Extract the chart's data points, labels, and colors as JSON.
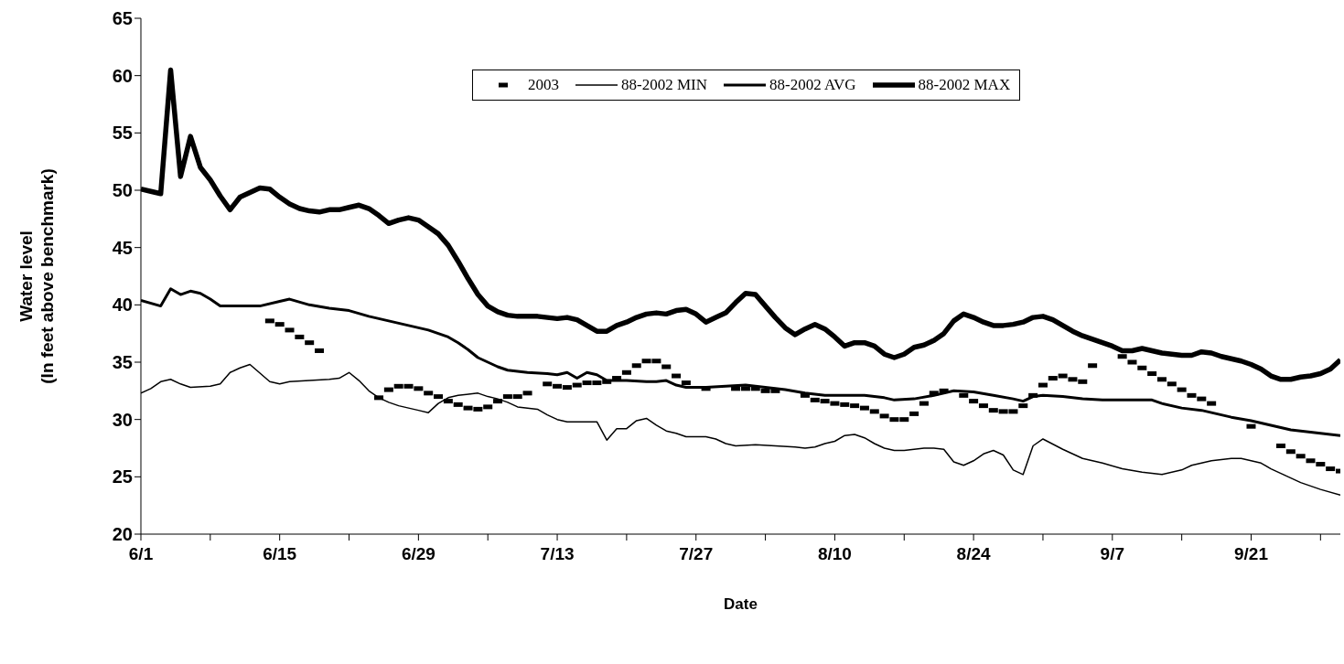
{
  "chart_data": {
    "type": "line",
    "xlabel": "Date",
    "ylabel": "Water level\n(In feet above benchmark)",
    "x": [
      "--06-01",
      "--06-02",
      "--06-03",
      "--06-04",
      "--06-05",
      "--06-06",
      "--06-07",
      "--06-08",
      "--06-09",
      "--06-10",
      "--06-11",
      "--06-12",
      "--06-13",
      "--06-14",
      "--06-15",
      "--06-16",
      "--06-17",
      "--06-18",
      "--06-19",
      "--06-20",
      "--06-21",
      "--06-22",
      "--06-23",
      "--06-24",
      "--06-25",
      "--06-26",
      "--06-27",
      "--06-28",
      "--06-29",
      "--06-30",
      "--07-01",
      "--07-02",
      "--07-03",
      "--07-04",
      "--07-05",
      "--07-06",
      "--07-07",
      "--07-08",
      "--07-09",
      "--07-10",
      "--07-11",
      "--07-12",
      "--07-13",
      "--07-14",
      "--07-15",
      "--07-16",
      "--07-17",
      "--07-18",
      "--07-19",
      "--07-20",
      "--07-21",
      "--07-22",
      "--07-23",
      "--07-24",
      "--07-25",
      "--07-26",
      "--07-27",
      "--07-28",
      "--07-29",
      "--07-30",
      "--07-31",
      "--08-01",
      "--08-02",
      "--08-03",
      "--08-04",
      "--08-05",
      "--08-06",
      "--08-07",
      "--08-08",
      "--08-09",
      "--08-10",
      "--08-11",
      "--08-12",
      "--08-13",
      "--08-14",
      "--08-15",
      "--08-16",
      "--08-17",
      "--08-18",
      "--08-19",
      "--08-20",
      "--08-21",
      "--08-22",
      "--08-23",
      "--08-24",
      "--08-25",
      "--08-26",
      "--08-27",
      "--08-28",
      "--08-29",
      "--08-30",
      "--08-31",
      "--09-01",
      "--09-02",
      "--09-03",
      "--09-04",
      "--09-05",
      "--09-06",
      "--09-07",
      "--09-08",
      "--09-09",
      "--09-10",
      "--09-11",
      "--09-12",
      "--09-13",
      "--09-14",
      "--09-15",
      "--09-16",
      "--09-17",
      "--09-18",
      "--09-19",
      "--09-20",
      "--09-21",
      "--09-22",
      "--09-23",
      "--09-24",
      "--09-25",
      "--09-26",
      "--09-27",
      "--09-28",
      "--09-29",
      "--09-30"
    ],
    "series": [
      {
        "name": "2003",
        "type": "scatter",
        "marker": "square",
        "color": "#000000",
        "values": [
          null,
          null,
          null,
          null,
          null,
          null,
          null,
          null,
          null,
          null,
          null,
          null,
          null,
          38.6,
          38.3,
          37.8,
          37.2,
          36.7,
          36.0,
          null,
          null,
          null,
          null,
          null,
          31.9,
          32.6,
          32.9,
          32.9,
          32.7,
          32.3,
          32.0,
          31.6,
          31.3,
          31.0,
          30.9,
          31.1,
          31.6,
          32.0,
          32.0,
          32.3,
          null,
          33.1,
          32.9,
          32.8,
          33.0,
          33.2,
          33.2,
          33.3,
          33.6,
          34.1,
          34.7,
          35.1,
          35.1,
          34.6,
          33.8,
          33.2,
          null,
          32.7,
          null,
          null,
          32.7,
          32.7,
          32.7,
          32.5,
          32.5,
          null,
          null,
          32.1,
          31.7,
          31.6,
          31.4,
          31.3,
          31.2,
          31.0,
          30.7,
          30.3,
          30.0,
          30.0,
          30.5,
          31.4,
          32.3,
          32.5,
          null,
          32.1,
          31.6,
          31.2,
          30.8,
          30.7,
          30.7,
          31.2,
          32.1,
          33.0,
          33.6,
          33.8,
          33.5,
          33.3,
          34.7,
          null,
          null,
          35.5,
          35.0,
          34.5,
          34.0,
          33.5,
          33.1,
          32.6,
          32.1,
          31.8,
          31.4,
          null,
          null,
          null,
          29.4,
          null,
          null,
          27.7,
          27.2,
          26.8,
          26.4,
          26.1,
          25.7,
          25.5
        ]
      },
      {
        "name": "88-2002 MIN",
        "color": "#000000",
        "x": [
          "--06-01",
          "--06-02",
          "--06-03",
          "--06-04",
          "--06-05",
          "--06-06",
          "--06-08",
          "--06-09",
          "--06-10",
          "--06-11",
          "--06-12",
          "--06-14",
          "--06-15",
          "--06-16",
          "--06-18",
          "--06-20",
          "--06-21",
          "--06-22",
          "--06-23",
          "--06-24",
          "--06-25",
          "--06-26",
          "--06-27",
          "--06-29",
          "--06-30",
          "--07-01",
          "--07-02",
          "--07-03",
          "--07-05",
          "--07-06",
          "--07-07",
          "--07-08",
          "--07-09",
          "--07-11",
          "--07-12",
          "--07-13",
          "--07-14",
          "--07-17",
          "--07-18",
          "--07-19",
          "--07-20",
          "--07-21",
          "--07-22",
          "--07-23",
          "--07-24",
          "--07-25",
          "--07-26",
          "--07-28",
          "--07-29",
          "--07-30",
          "--07-31",
          "--08-02",
          "--08-04",
          "--08-06",
          "--08-07",
          "--08-08",
          "--08-09",
          "--08-10",
          "--08-11",
          "--08-12",
          "--08-13",
          "--08-14",
          "--08-15",
          "--08-16",
          "--08-17",
          "--08-19",
          "--08-20",
          "--08-21",
          "--08-22",
          "--08-23",
          "--08-24",
          "--08-25",
          "--08-26",
          "--08-27",
          "--08-28",
          "--08-29",
          "--08-30",
          "--08-31",
          "--09-02",
          "--09-04",
          "--09-06",
          "--09-08",
          "--09-10",
          "--09-12",
          "--09-14",
          "--09-15",
          "--09-17",
          "--09-19",
          "--09-20",
          "--09-21",
          "--09-22",
          "--09-23",
          "--09-24",
          "--09-26",
          "--09-28",
          "--09-30"
        ],
        "values": [
          32.3,
          32.7,
          33.3,
          33.5,
          33.1,
          32.8,
          32.9,
          33.1,
          34.1,
          34.5,
          34.8,
          33.3,
          33.1,
          33.3,
          33.4,
          33.5,
          33.6,
          34.1,
          33.4,
          32.5,
          31.9,
          31.5,
          31.2,
          30.8,
          30.6,
          31.4,
          31.9,
          32.1,
          32.3,
          32.0,
          31.8,
          31.5,
          31.1,
          30.9,
          30.4,
          30.0,
          29.8,
          29.8,
          28.2,
          29.2,
          29.2,
          29.9,
          30.1,
          29.5,
          29.0,
          28.8,
          28.5,
          28.5,
          28.3,
          27.9,
          27.7,
          27.8,
          27.7,
          27.6,
          27.5,
          27.6,
          27.9,
          28.1,
          28.6,
          28.7,
          28.4,
          27.9,
          27.5,
          27.3,
          27.3,
          27.5,
          27.5,
          27.4,
          26.3,
          26.0,
          26.4,
          27.0,
          27.3,
          26.9,
          25.6,
          25.2,
          27.7,
          28.3,
          27.4,
          26.6,
          26.2,
          25.7,
          25.4,
          25.2,
          25.6,
          26.0,
          26.4,
          26.6,
          26.6,
          26.4,
          26.2,
          25.7,
          25.3,
          24.5,
          23.9,
          23.4
        ]
      },
      {
        "name": "88-2002 AVG",
        "color": "#000000",
        "x": [
          "--06-01",
          "--06-03",
          "--06-04",
          "--06-05",
          "--06-06",
          "--06-07",
          "--06-08",
          "--06-09",
          "--06-11",
          "--06-13",
          "--06-15",
          "--06-16",
          "--06-18",
          "--06-20",
          "--06-22",
          "--06-24",
          "--06-26",
          "--06-28",
          "--06-30",
          "--07-02",
          "--07-03",
          "--07-04",
          "--07-05",
          "--07-06",
          "--07-07",
          "--07-08",
          "--07-10",
          "--07-12",
          "--07-13",
          "--07-14",
          "--07-15",
          "--07-16",
          "--07-17",
          "--07-18",
          "--07-20",
          "--07-22",
          "--07-23",
          "--07-24",
          "--07-25",
          "--07-26",
          "--07-28",
          "--07-30",
          "--08-01",
          "--08-03",
          "--08-05",
          "--08-07",
          "--08-09",
          "--08-11",
          "--08-13",
          "--08-15",
          "--08-16",
          "--08-18",
          "--08-20",
          "--08-22",
          "--08-24",
          "--08-26",
          "--08-28",
          "--08-29",
          "--08-30",
          "--08-31",
          "--09-02",
          "--09-04",
          "--09-06",
          "--09-08",
          "--09-11",
          "--09-12",
          "--09-14",
          "--09-16",
          "--09-17",
          "--09-19",
          "--09-21",
          "--09-23",
          "--09-25",
          "--09-27",
          "--09-30"
        ],
        "values": [
          40.4,
          39.9,
          41.4,
          40.9,
          41.2,
          41.0,
          40.5,
          39.9,
          39.9,
          39.9,
          40.3,
          40.5,
          40.0,
          39.7,
          39.5,
          39.0,
          38.6,
          38.2,
          37.8,
          37.2,
          36.7,
          36.1,
          35.4,
          35.0,
          34.6,
          34.3,
          34.1,
          34.0,
          33.9,
          34.1,
          33.6,
          34.1,
          33.9,
          33.4,
          33.4,
          33.3,
          33.3,
          33.4,
          33.0,
          32.8,
          32.8,
          32.9,
          33.0,
          32.8,
          32.6,
          32.3,
          32.1,
          32.1,
          32.1,
          31.9,
          31.7,
          31.8,
          32.1,
          32.5,
          32.4,
          32.1,
          31.8,
          31.6,
          32.0,
          32.1,
          32.0,
          31.8,
          31.7,
          31.7,
          31.7,
          31.4,
          31.0,
          30.8,
          30.6,
          30.2,
          29.9,
          29.5,
          29.1,
          28.9,
          28.6
        ]
      },
      {
        "name": "88-2002 MAX",
        "color": "#000000",
        "values": [
          50.1,
          49.9,
          49.7,
          60.5,
          51.2,
          54.7,
          52.0,
          50.9,
          49.5,
          48.3,
          49.4,
          49.8,
          50.2,
          50.1,
          49.4,
          48.8,
          48.4,
          48.2,
          48.1,
          48.3,
          48.3,
          48.5,
          48.7,
          48.4,
          47.8,
          47.1,
          47.4,
          47.6,
          47.4,
          46.8,
          46.2,
          45.2,
          43.8,
          42.3,
          40.9,
          39.9,
          39.4,
          39.1,
          39.0,
          39.0,
          39.0,
          38.9,
          38.8,
          38.9,
          38.7,
          38.2,
          37.7,
          37.7,
          38.2,
          38.5,
          38.9,
          39.2,
          39.3,
          39.2,
          39.5,
          39.6,
          39.2,
          38.5,
          38.9,
          39.3,
          40.2,
          41.0,
          40.9,
          39.9,
          38.9,
          38.0,
          37.4,
          37.9,
          38.3,
          37.9,
          37.2,
          36.4,
          36.7,
          36.7,
          36.4,
          35.7,
          35.4,
          35.7,
          36.3,
          36.5,
          36.9,
          37.5,
          38.6,
          39.2,
          38.9,
          38.5,
          38.2,
          38.2,
          38.3,
          38.5,
          38.9,
          39.0,
          38.7,
          38.2,
          37.7,
          37.3,
          37.0,
          36.7,
          36.4,
          36.0,
          36.0,
          36.2,
          36.0,
          35.8,
          35.7,
          35.6,
          35.6,
          35.9,
          35.8,
          35.5,
          35.3,
          35.1,
          34.8,
          34.4,
          33.8,
          33.5,
          33.5,
          33.7,
          33.8,
          34.0,
          34.4,
          35.2
        ]
      }
    ],
    "xlim": [
      "--06-01",
      "--09-30"
    ],
    "xticks": [
      {
        "value": "--06-01",
        "label": "6/1"
      },
      {
        "value": "--06-08",
        "label": null
      },
      {
        "value": "--06-15",
        "label": "6/15"
      },
      {
        "value": "--06-22",
        "label": null
      },
      {
        "value": "--06-29",
        "label": "6/29"
      },
      {
        "value": "--07-06",
        "label": null
      },
      {
        "value": "--07-13",
        "label": "7/13"
      },
      {
        "value": "--07-20",
        "label": null
      },
      {
        "value": "--07-27",
        "label": "7/27"
      },
      {
        "value": "--08-03",
        "label": null
      },
      {
        "value": "--08-10",
        "label": "8/10"
      },
      {
        "value": "--08-17",
        "label": null
      },
      {
        "value": "--08-24",
        "label": "8/24"
      },
      {
        "value": "--08-31",
        "label": null
      },
      {
        "value": "--09-07",
        "label": "9/7"
      },
      {
        "value": "--09-14",
        "label": null
      },
      {
        "value": "--09-21",
        "label": "9/21"
      },
      {
        "value": "--09-28",
        "label": null
      }
    ],
    "ylim": [
      20,
      65
    ],
    "yticks": [
      20,
      25,
      30,
      35,
      40,
      45,
      50,
      55,
      60,
      65
    ],
    "grid": false,
    "legend": "top right"
  }
}
